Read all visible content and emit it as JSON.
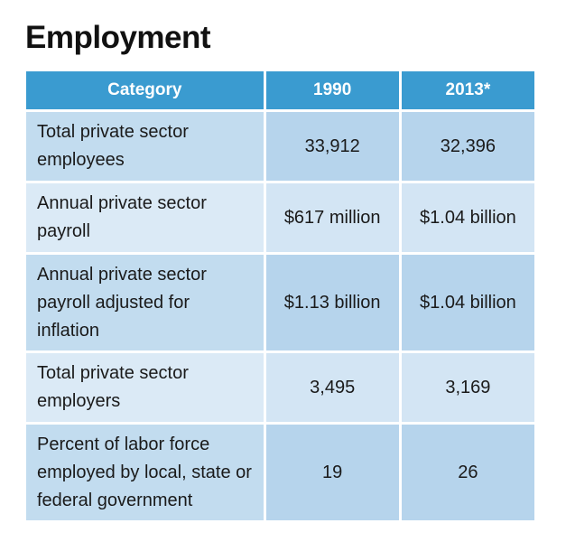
{
  "title": "Employment",
  "table": {
    "headers": [
      "Category",
      "1990",
      "2013*"
    ],
    "rows": [
      {
        "category": "Total private sector employees",
        "y1990": "33,912",
        "y2013": "32,396"
      },
      {
        "category": "Annual private sector payroll",
        "y1990": "$617 million",
        "y2013": "$1.04 billion"
      },
      {
        "category": "Annual private sector payroll adjusted for inflation",
        "y1990": "$1.13 billion",
        "y2013": "$1.04 billion"
      },
      {
        "category": "Total private sector employers",
        "y1990": "3,495",
        "y2013": "3,169"
      },
      {
        "category": "Percent of labor force employed by local, state or federal government",
        "y1990": "19",
        "y2013": "26"
      }
    ]
  },
  "colors": {
    "header_bg": "#3a9bd0",
    "row_dark": "#c2dcef",
    "row_light": "#dbeaf6"
  }
}
